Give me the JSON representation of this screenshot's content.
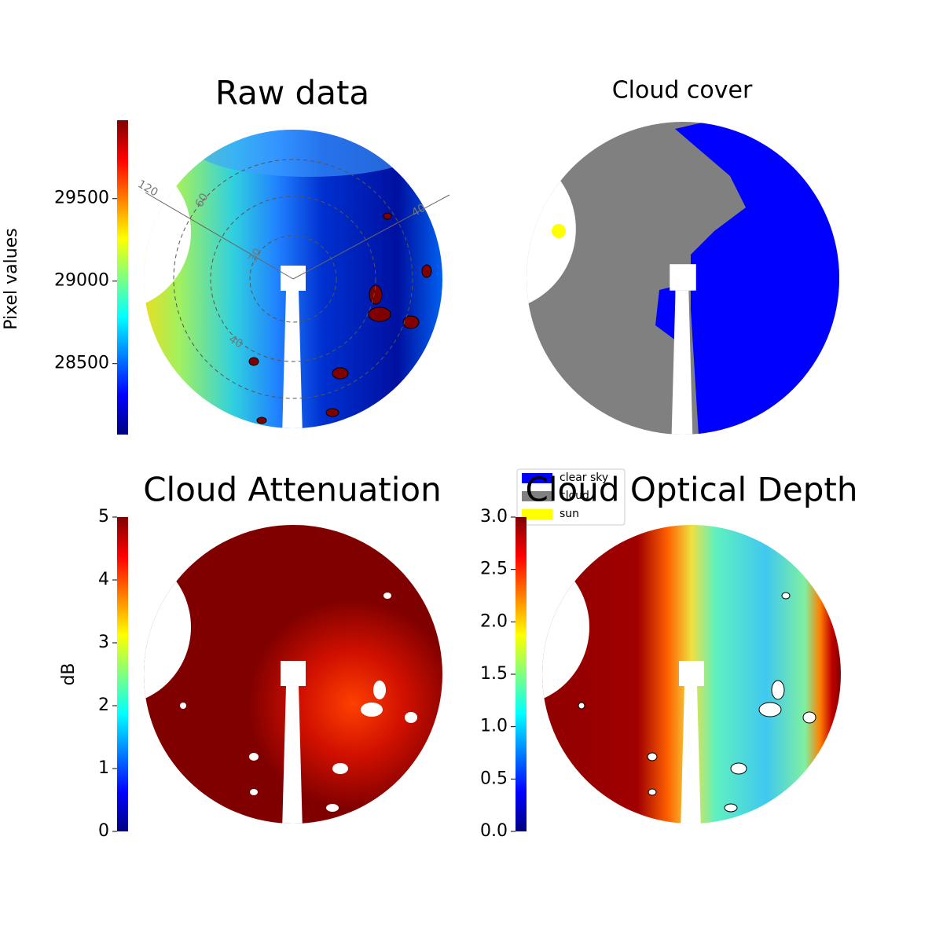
{
  "chart_data": [
    {
      "type": "image",
      "title": "Raw data",
      "colormap": "jet",
      "ylabel": "Pixel values",
      "ylim": [
        28070,
        29975
      ],
      "yticks": [
        28500,
        29000,
        29500
      ],
      "annotations": [
        "120",
        "60",
        "30",
        "40",
        "40"
      ]
    },
    {
      "type": "image",
      "title": "Cloud cover",
      "legend": [
        {
          "name": "clear sky",
          "color": "#0000ff"
        },
        {
          "name": "cloud",
          "color": "#808080"
        },
        {
          "name": "sun",
          "color": "#ffff00"
        }
      ]
    },
    {
      "type": "image",
      "title": "Cloud Attenuation",
      "colormap": "jet",
      "ylabel": "dB",
      "ylim": [
        0,
        5
      ],
      "yticks": [
        0,
        1,
        2,
        3,
        4,
        5
      ]
    },
    {
      "type": "image",
      "title": "Cloud Optical Depth",
      "colormap": "jet",
      "ylim": [
        0,
        3
      ],
      "yticks": [
        {
          "value": 0,
          "label": "0.0"
        },
        {
          "value": 0.5,
          "label": "0.5"
        },
        {
          "value": 1,
          "label": "1.0"
        },
        {
          "value": 1.5,
          "label": "1.5"
        },
        {
          "value": 2,
          "label": "2.0"
        },
        {
          "value": 2.5,
          "label": "2.5"
        },
        {
          "value": 3,
          "label": "3.0"
        }
      ]
    }
  ]
}
